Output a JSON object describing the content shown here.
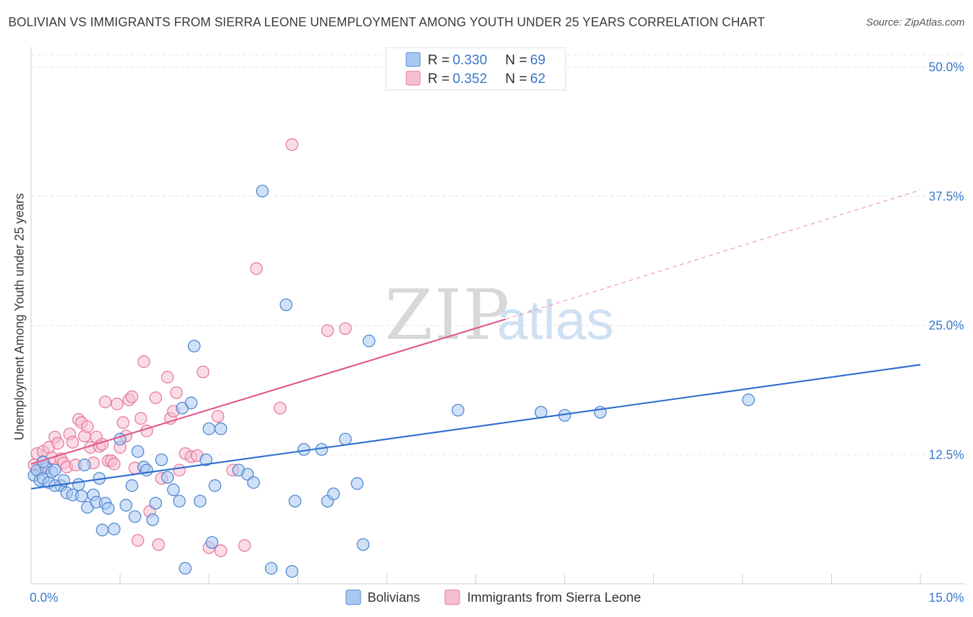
{
  "title": "BOLIVIAN VS IMMIGRANTS FROM SIERRA LEONE UNEMPLOYMENT AMONG YOUTH UNDER 25 YEARS CORRELATION CHART",
  "source": "Source: ZipAtlas.com",
  "watermark": {
    "part1": "ZIP",
    "part2": "atlas"
  },
  "colors": {
    "blue_fill": "#a9c8f0",
    "blue_stroke": "#4f86d2",
    "blue_line": "#2f6fcf",
    "pink_fill": "#f6bfd0",
    "pink_stroke": "#e57aa0",
    "pink_line": "#e0578b",
    "tick_text": "#3b78c8",
    "grid": "#dddddd"
  },
  "chart_data": {
    "type": "scatter",
    "title": "BOLIVIAN VS IMMIGRANTS FROM SIERRA LEONE UNEMPLOYMENT AMONG YOUTH UNDER 25 YEARS CORRELATION CHART",
    "xlabel": "",
    "ylabel": "Unemployment Among Youth under 25 years",
    "xlim": [
      0,
      15
    ],
    "ylim": [
      0,
      50
    ],
    "y_ticks": [
      12.5,
      25.0,
      37.5,
      50.0
    ],
    "y_tick_labels": [
      "12.5%",
      "25.0%",
      "37.5%",
      "50.0%"
    ],
    "x_tick_labels": [
      "0.0%",
      "15.0%"
    ],
    "legend": [
      {
        "name": "Bolivians",
        "r_label": "R =",
        "r": "0.330",
        "n_label": "N =",
        "n": "69"
      },
      {
        "name": "Immigrants from Sierra Leone",
        "r_label": "R =",
        "r": "0.352",
        "n_label": "N =",
        "n": "62"
      }
    ],
    "series": [
      {
        "name": "Bolivians",
        "color": "blue",
        "trend": {
          "x0": 0.0,
          "y0": 9.2,
          "x1": 15.0,
          "y1": 21.2,
          "dashed_until": null
        },
        "points": [
          [
            0.05,
            10.5
          ],
          [
            0.1,
            11.0
          ],
          [
            0.15,
            10.0
          ],
          [
            0.2,
            10.2
          ],
          [
            0.25,
            11.2
          ],
          [
            0.3,
            9.8
          ],
          [
            0.35,
            10.8
          ],
          [
            0.4,
            11.0
          ],
          [
            0.5,
            9.5
          ],
          [
            0.55,
            10.0
          ],
          [
            0.6,
            8.8
          ],
          [
            0.7,
            8.6
          ],
          [
            0.8,
            9.6
          ],
          [
            0.85,
            8.5
          ],
          [
            0.9,
            11.5
          ],
          [
            0.95,
            7.4
          ],
          [
            1.05,
            8.6
          ],
          [
            1.1,
            7.9
          ],
          [
            1.15,
            10.2
          ],
          [
            1.2,
            5.2
          ],
          [
            1.25,
            7.8
          ],
          [
            1.3,
            7.3
          ],
          [
            1.4,
            5.3
          ],
          [
            1.5,
            14.0
          ],
          [
            1.6,
            7.6
          ],
          [
            1.7,
            9.5
          ],
          [
            1.75,
            6.5
          ],
          [
            1.8,
            12.8
          ],
          [
            1.9,
            11.3
          ],
          [
            1.95,
            11.0
          ],
          [
            2.05,
            6.2
          ],
          [
            2.1,
            7.8
          ],
          [
            2.2,
            12.0
          ],
          [
            2.3,
            10.3
          ],
          [
            2.4,
            9.1
          ],
          [
            2.5,
            8.0
          ],
          [
            2.55,
            17.0
          ],
          [
            2.6,
            1.5
          ],
          [
            2.7,
            17.5
          ],
          [
            2.75,
            23.0
          ],
          [
            2.85,
            8.0
          ],
          [
            2.95,
            12.0
          ],
          [
            3.0,
            15.0
          ],
          [
            3.05,
            4.0
          ],
          [
            3.1,
            9.5
          ],
          [
            3.2,
            15.0
          ],
          [
            3.5,
            11.0
          ],
          [
            3.65,
            10.6
          ],
          [
            3.75,
            9.8
          ],
          [
            3.9,
            38.0
          ],
          [
            4.05,
            1.5
          ],
          [
            4.3,
            27.0
          ],
          [
            4.4,
            1.2
          ],
          [
            4.45,
            8.0
          ],
          [
            4.6,
            13.0
          ],
          [
            4.9,
            13.0
          ],
          [
            5.0,
            8.0
          ],
          [
            5.1,
            8.7
          ],
          [
            5.3,
            14.0
          ],
          [
            5.5,
            9.7
          ],
          [
            5.6,
            3.8
          ],
          [
            5.7,
            23.5
          ],
          [
            7.2,
            16.8
          ],
          [
            8.6,
            16.6
          ],
          [
            9.0,
            16.3
          ],
          [
            9.6,
            16.6
          ],
          [
            12.1,
            17.8
          ],
          [
            0.2,
            11.8
          ],
          [
            0.4,
            9.5
          ]
        ]
      },
      {
        "name": "Immigrants from Sierra Leone",
        "color": "pink",
        "trend": {
          "x0": 0.0,
          "y0": 11.6,
          "x1": 8.0,
          "y1": 25.6,
          "dash_x1": 15.0,
          "dash_y1": 38.1
        },
        "points": [
          [
            0.05,
            11.5
          ],
          [
            0.1,
            12.6
          ],
          [
            0.15,
            11.0
          ],
          [
            0.2,
            12.8
          ],
          [
            0.25,
            11.4
          ],
          [
            0.3,
            13.2
          ],
          [
            0.35,
            12.2
          ],
          [
            0.4,
            14.2
          ],
          [
            0.45,
            13.6
          ],
          [
            0.5,
            12.1
          ],
          [
            0.55,
            11.7
          ],
          [
            0.6,
            11.3
          ],
          [
            0.65,
            14.5
          ],
          [
            0.7,
            13.7
          ],
          [
            0.75,
            11.5
          ],
          [
            0.8,
            15.9
          ],
          [
            0.85,
            15.6
          ],
          [
            0.9,
            14.3
          ],
          [
            0.95,
            15.2
          ],
          [
            1.0,
            13.2
          ],
          [
            1.05,
            11.7
          ],
          [
            1.1,
            14.2
          ],
          [
            1.15,
            13.3
          ],
          [
            1.2,
            13.5
          ],
          [
            1.25,
            17.6
          ],
          [
            1.3,
            11.9
          ],
          [
            1.35,
            11.9
          ],
          [
            1.4,
            11.6
          ],
          [
            1.45,
            17.4
          ],
          [
            1.5,
            13.2
          ],
          [
            1.55,
            15.6
          ],
          [
            1.6,
            14.3
          ],
          [
            1.65,
            17.8
          ],
          [
            1.7,
            18.1
          ],
          [
            1.75,
            11.2
          ],
          [
            1.8,
            4.2
          ],
          [
            1.85,
            16.0
          ],
          [
            1.9,
            21.5
          ],
          [
            1.95,
            14.8
          ],
          [
            2.0,
            7.0
          ],
          [
            2.1,
            18.0
          ],
          [
            2.15,
            3.8
          ],
          [
            2.2,
            10.2
          ],
          [
            2.3,
            20.0
          ],
          [
            2.35,
            16.0
          ],
          [
            2.4,
            16.7
          ],
          [
            2.45,
            18.5
          ],
          [
            2.5,
            11.0
          ],
          [
            2.6,
            12.6
          ],
          [
            2.7,
            12.3
          ],
          [
            2.8,
            12.4
          ],
          [
            2.9,
            20.5
          ],
          [
            3.0,
            3.5
          ],
          [
            3.15,
            16.2
          ],
          [
            3.2,
            3.2
          ],
          [
            3.4,
            11.0
          ],
          [
            3.6,
            3.7
          ],
          [
            3.8,
            30.5
          ],
          [
            4.2,
            17.0
          ],
          [
            4.4,
            42.5
          ],
          [
            5.0,
            24.5
          ],
          [
            5.3,
            24.7
          ]
        ]
      }
    ]
  },
  "legend_items": [
    {
      "label": "Bolivians"
    },
    {
      "label": "Immigrants from Sierra Leone"
    }
  ]
}
